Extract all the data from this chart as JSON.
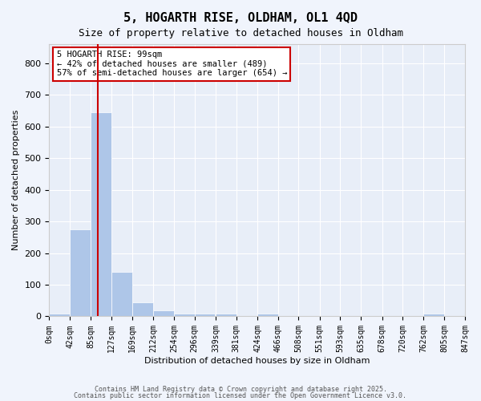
{
  "title": "5, HOGARTH RISE, OLDHAM, OL1 4QD",
  "subtitle": "Size of property relative to detached houses in Oldham",
  "xlabel": "Distribution of detached houses by size in Oldham",
  "ylabel": "Number of detached properties",
  "bar_color": "#aec6e8",
  "bar_edge_color": "#aec6e8",
  "background_color": "#e8eef8",
  "grid_color": "#ffffff",
  "red_line_x": 99,
  "annotation_text": "5 HOGARTH RISE: 99sqm\n← 42% of detached houses are smaller (489)\n57% of semi-detached houses are larger (654) →",
  "annotation_box_color": "#ffffff",
  "annotation_box_edge_color": "#cc0000",
  "bins": [
    0,
    42,
    85,
    127,
    169,
    212,
    254,
    296,
    339,
    381,
    424,
    466,
    508,
    551,
    593,
    635,
    678,
    720,
    762,
    805,
    847
  ],
  "bar_heights": [
    10,
    275,
    645,
    140,
    45,
    20,
    10,
    10,
    10,
    0,
    10,
    0,
    0,
    0,
    0,
    0,
    0,
    0,
    10,
    0,
    0
  ],
  "ylim": [
    0,
    860
  ],
  "xlim": [
    0,
    847
  ],
  "yticks": [
    0,
    100,
    200,
    300,
    400,
    500,
    600,
    700,
    800
  ],
  "xtick_labels": [
    "0sqm",
    "42sqm",
    "85sqm",
    "127sqm",
    "169sqm",
    "212sqm",
    "254sqm",
    "296sqm",
    "339sqm",
    "381sqm",
    "424sqm",
    "466sqm",
    "508sqm",
    "551sqm",
    "593sqm",
    "635sqm",
    "678sqm",
    "720sqm",
    "762sqm",
    "805sqm",
    "847sqm"
  ],
  "footer_line1": "Contains HM Land Registry data © Crown copyright and database right 2025.",
  "footer_line2": "Contains public sector information licensed under the Open Government Licence v3.0."
}
